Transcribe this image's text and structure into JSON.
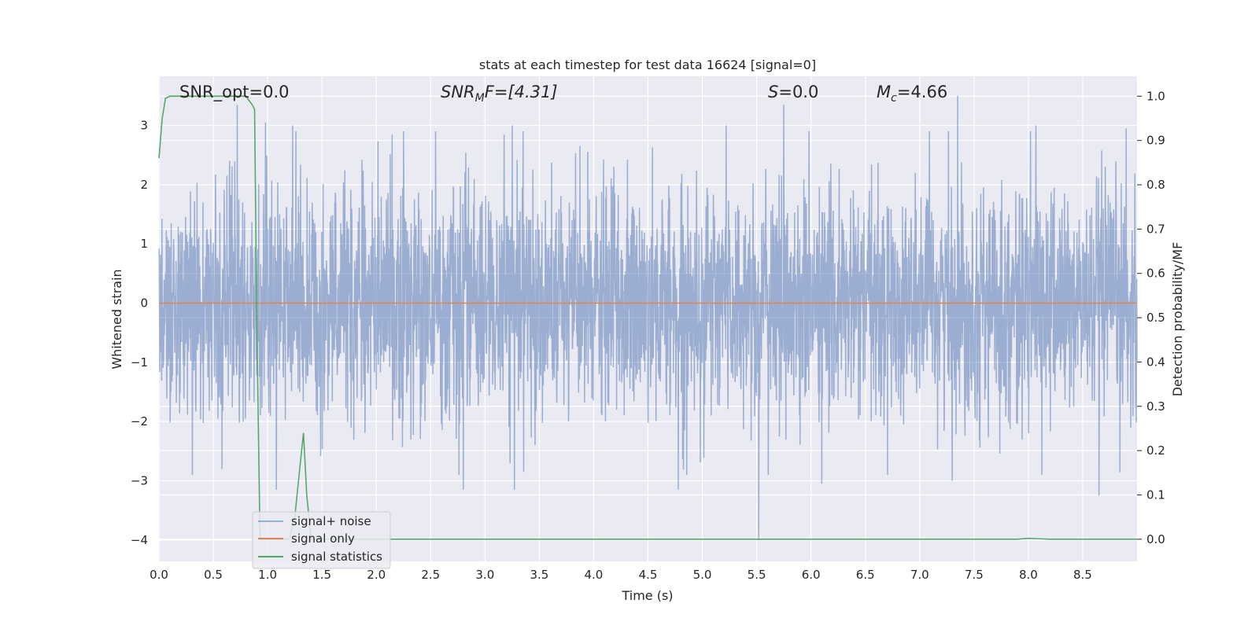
{
  "chart_data": {
    "type": "line",
    "title": "stats at each timestep for test data 16624 [signal=0]",
    "xlabel": "Time (s)",
    "ylabel": "Whitened strain",
    "y2label": "Detection probability/MF",
    "xlim": [
      0.0,
      9.0
    ],
    "ylim": [
      -4.36,
      3.83
    ],
    "y2lim": [
      -0.05,
      1.045
    ],
    "xticks": [
      "0.0",
      "0.5",
      "1.0",
      "1.5",
      "2.0",
      "2.5",
      "3.0",
      "3.5",
      "4.0",
      "4.5",
      "5.0",
      "5.5",
      "6.0",
      "6.5",
      "7.0",
      "7.5",
      "8.0",
      "8.5"
    ],
    "yticks": [
      "3",
      "2",
      "1",
      "0",
      "−1",
      "−2",
      "−3",
      "−4"
    ],
    "y2ticks": [
      "1.0",
      "0.9",
      "0.8",
      "0.7",
      "0.6",
      "0.5",
      "0.4",
      "0.3",
      "0.2",
      "0.1",
      "0.0"
    ],
    "grid": true,
    "legend_position": "lower-left",
    "annotations": {
      "snr_opt": "SNR_opt=0.0",
      "snr_mf_main": "SNR",
      "snr_mf_sub": "M",
      "snr_mf_rest": "F=[4.31]",
      "s_main": "S",
      "s_rest": "=0.0",
      "mc_main": "M",
      "mc_sub": "c",
      "mc_rest": "=4.66"
    },
    "series": [
      {
        "name": "signal+ noise",
        "color": "#4c72b0",
        "axis": "left",
        "description_values": "whitened noise, amplitude approx ±2 with extremes from -4.0 to 3.5",
        "extremes": [
          {
            "x": 0.72,
            "y": 3.35
          },
          {
            "x": 0.98,
            "y": 3.05
          },
          {
            "x": 1.23,
            "y": 3.0
          },
          {
            "x": 3.25,
            "y": 3.0
          },
          {
            "x": 5.22,
            "y": 3.0
          },
          {
            "x": 5.75,
            "y": 3.35
          },
          {
            "x": 7.35,
            "y": 3.5
          },
          {
            "x": 8.07,
            "y": 3.0
          },
          {
            "x": 8.9,
            "y": 2.95
          },
          {
            "x": 0.58,
            "y": -2.8
          },
          {
            "x": 1.08,
            "y": -3.15
          },
          {
            "x": 2.8,
            "y": -3.15
          },
          {
            "x": 3.27,
            "y": -3.15
          },
          {
            "x": 5.52,
            "y": -4.0
          },
          {
            "x": 4.78,
            "y": -3.15
          },
          {
            "x": 8.65,
            "y": -3.25
          },
          {
            "x": 7.3,
            "y": -3.0
          },
          {
            "x": 6.1,
            "y": -3.05
          }
        ]
      },
      {
        "name": "signal only",
        "color": "#dd8452",
        "axis": "left",
        "x": [
          0.0,
          9.0
        ],
        "y": [
          0.0,
          0.0
        ]
      },
      {
        "name": "signal statistics",
        "color": "#55a868",
        "axis": "right",
        "x": [
          0.0,
          0.03,
          0.06,
          0.1,
          0.3,
          0.6,
          0.8,
          0.86,
          0.88,
          0.9,
          0.93,
          0.98,
          1.1,
          1.2,
          1.25,
          1.3,
          1.33,
          1.36,
          1.4,
          1.6,
          7.9,
          8.0,
          8.1,
          8.2,
          9.0
        ],
        "y": [
          0.86,
          0.95,
          0.995,
          1.0,
          1.0,
          1.0,
          1.0,
          0.98,
          0.97,
          0.5,
          0.0,
          0.0,
          0.0,
          0.0,
          0.05,
          0.17,
          0.24,
          0.1,
          0.0,
          0.0,
          0.0,
          0.002,
          0.001,
          0.0,
          0.0
        ]
      }
    ]
  }
}
